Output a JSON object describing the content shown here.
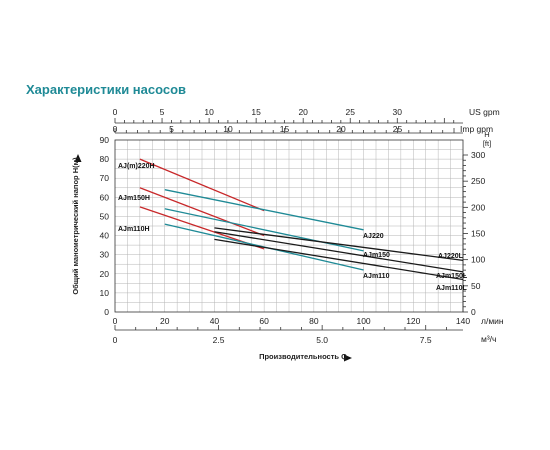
{
  "chart_data": {
    "type": "line",
    "title": "Характеристики насосов",
    "xlabel": "Производительность  Q",
    "ylabel": "Общий манометрический напор H(м)",
    "y_right_label": "H [ft]",
    "xlim": [
      0,
      140
    ],
    "ylim": [
      0,
      90
    ],
    "grid": true,
    "x_ticks_lmin": [
      "0",
      "20",
      "40",
      "60",
      "80",
      "100",
      "120",
      "140"
    ],
    "x_unit_lmin": "л/мин",
    "x_ticks_m3h": [
      {
        "v": 0,
        "label": "0"
      },
      {
        "v": 2.5,
        "label": "2.5"
      },
      {
        "v": 5,
        "label": "5.0"
      },
      {
        "v": 7.5,
        "label": "7.5"
      }
    ],
    "x_unit_m3h": "м³/ч",
    "y_ticks": [
      "0",
      "10",
      "20",
      "30",
      "40",
      "50",
      "60",
      "70",
      "80",
      "90"
    ],
    "y_ticks_ft": [
      "0",
      "50",
      "100",
      "150",
      "200",
      "250",
      "300"
    ],
    "top_scale_us": {
      "name": "US gpm",
      "ticks": [
        "0",
        "5",
        "10",
        "15",
        "20",
        "25",
        "30"
      ]
    },
    "top_scale_imp": {
      "name": "Imp gpm",
      "ticks": [
        "0",
        "5",
        "10",
        "15",
        "20",
        "25"
      ]
    },
    "series": [
      {
        "name": "AJ(m)220H",
        "color": "#c8282a",
        "x": [
          10,
          60
        ],
        "y": [
          80,
          53
        ]
      },
      {
        "name": "AJm150H",
        "color": "#c8282a",
        "x": [
          10,
          60
        ],
        "y": [
          65,
          40
        ]
      },
      {
        "name": "AJm110H",
        "color": "#c8282a",
        "x": [
          10,
          60
        ],
        "y": [
          55,
          33
        ]
      },
      {
        "name": "AJ220",
        "color": "#1f8a96",
        "x": [
          20,
          100
        ],
        "y": [
          64,
          43
        ]
      },
      {
        "name": "AJm150",
        "color": "#1f8a96",
        "x": [
          20,
          100
        ],
        "y": [
          54,
          32
        ]
      },
      {
        "name": "AJm110",
        "color": "#1f8a96",
        "x": [
          20,
          100
        ],
        "y": [
          46,
          22
        ]
      },
      {
        "name": "AJ220L",
        "color": "#1a1a1a",
        "x": [
          40,
          140
        ],
        "y": [
          44,
          27
        ]
      },
      {
        "name": "AJm150L",
        "color": "#1a1a1a",
        "x": [
          40,
          140
        ],
        "y": [
          42,
          21
        ]
      },
      {
        "name": "AJm110L",
        "color": "#1a1a1a",
        "x": [
          40,
          140
        ],
        "y": [
          38,
          17
        ]
      }
    ]
  }
}
